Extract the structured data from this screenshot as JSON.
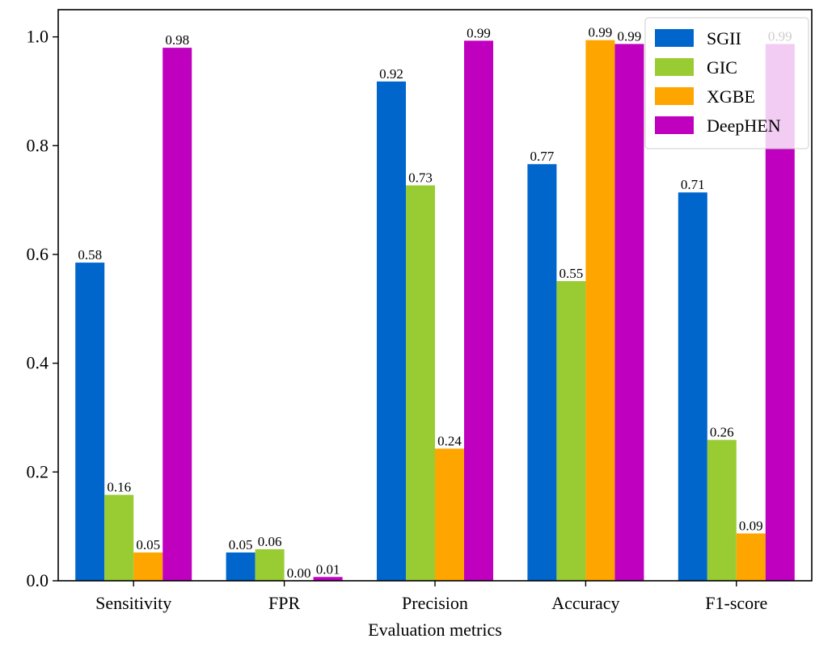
{
  "chart_data": {
    "type": "bar",
    "title": "",
    "xlabel": "Evaluation metrics",
    "ylabel": "",
    "ylim": [
      0,
      1.05
    ],
    "yticks": [
      "0.0",
      "0.2",
      "0.4",
      "0.6",
      "0.8",
      "1.0"
    ],
    "categories": [
      "Sensitivity",
      "FPR",
      "Precision",
      "Accuracy",
      "F1-score"
    ],
    "grid": false,
    "legend_position": "top-right",
    "series": [
      {
        "name": "SGII",
        "color": "#0066cc",
        "values": [
          0.585,
          0.052,
          0.918,
          0.766,
          0.714
        ],
        "labels": [
          "0.58",
          "0.05",
          "0.92",
          "0.77",
          "0.71"
        ]
      },
      {
        "name": "GIC",
        "color": "#99cc33",
        "values": [
          0.158,
          0.058,
          0.727,
          0.551,
          0.259
        ],
        "labels": [
          "0.16",
          "0.06",
          "0.73",
          "0.55",
          "0.26"
        ]
      },
      {
        "name": "XGBE",
        "color": "#ffa500",
        "values": [
          0.052,
          0.0,
          0.243,
          0.994,
          0.087
        ],
        "labels": [
          "0.05",
          "0.00",
          "0.24",
          "0.99",
          "0.09"
        ]
      },
      {
        "name": "DeepHEN",
        "color": "#bf00bf",
        "values": [
          0.98,
          0.007,
          0.993,
          0.987,
          0.987
        ],
        "labels": [
          "0.98",
          "0.01",
          "0.99",
          "0.99",
          "0.99"
        ]
      }
    ]
  }
}
